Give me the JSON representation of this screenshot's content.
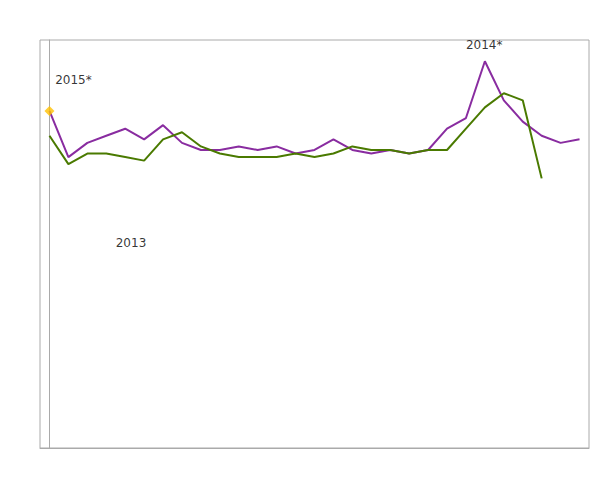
{
  "chart_data": {
    "type": "line",
    "series": [
      {
        "color": "#892ca0",
        "values": [
          95,
          82,
          86,
          88,
          90,
          87,
          91,
          86,
          84,
          84,
          85,
          84,
          85,
          83,
          84,
          87,
          84,
          83,
          84,
          83,
          84,
          90,
          93,
          109,
          98,
          92,
          88,
          86,
          87
        ]
      },
      {
        "color": "#4a7a00",
        "values": [
          88,
          80,
          83,
          83,
          82,
          81,
          87,
          89,
          85,
          83,
          82,
          82,
          82,
          83,
          82,
          83,
          85,
          84,
          84,
          83,
          84,
          84,
          90,
          96,
          100,
          98,
          76
        ]
      },
      {
        "type": "scatter",
        "marker": "diamond",
        "color": "#ffc000",
        "x": [
          0
        ],
        "values": [
          95
        ]
      }
    ],
    "annotations": [
      {
        "text": "2015*",
        "x": 0.3,
        "y": 102
      },
      {
        "text": "2013",
        "x": 3.5,
        "y": 56
      },
      {
        "text": "2014*",
        "x": 22.0,
        "y": 112
      }
    ],
    "xlim": [
      -0.5,
      28.5
    ],
    "ylim": [
      0,
      115
    ],
    "xticks": [],
    "yticks": [],
    "tick_labels": false,
    "grid": false
  }
}
